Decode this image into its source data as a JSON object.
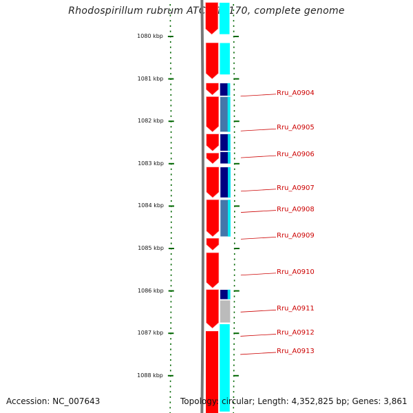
{
  "title": "Rhodospirillum rubrum ATCC 11170, complete genome",
  "accession_text": "Accession: NC_007643",
  "topology_text": "Topology: circular; Length: 4,352,825 bp; Genes: 3,861",
  "colors": {
    "cds_forward": "#ff0000",
    "strand_cyan": "#00ffff",
    "gene_navy": "#000080",
    "gene_steel": "#4477aa",
    "gene_grey": "#bbbbbb",
    "tick_green": "#006600",
    "backbone": "#777777",
    "label_red": "#cc0000"
  },
  "scale_kbp": [
    1080,
    1081,
    1082,
    1083,
    1084,
    1085,
    1086,
    1087,
    1088
  ],
  "scale_labels": [
    "1080 kbp",
    "1081 kbp",
    "1082 kbp",
    "1083 kbp",
    "1084 kbp",
    "1085 kbp",
    "1086 kbp",
    "1087 kbp",
    "1088 kbp"
  ],
  "view_range_kbp": [
    1079.22,
    1088.85
  ],
  "forward_cds": [
    [
      1079.2,
      1079.95
    ],
    [
      1080.15,
      1081.0
    ],
    [
      1081.1,
      1081.38
    ],
    [
      1081.42,
      1082.25
    ],
    [
      1082.3,
      1082.7
    ],
    [
      1082.75,
      1083.0
    ],
    [
      1083.08,
      1083.8
    ],
    [
      1083.85,
      1084.72
    ],
    [
      1084.76,
      1085.04
    ],
    [
      1085.1,
      1085.93
    ],
    [
      1085.97,
      1086.88
    ]
  ],
  "second_track": [
    {
      "start": 1079.2,
      "end": 1079.95,
      "kind": "cyan"
    },
    {
      "start": 1080.15,
      "end": 1080.9,
      "kind": "cyan"
    },
    {
      "start": 1081.1,
      "end": 1081.4,
      "kind": "navy"
    },
    {
      "start": 1081.42,
      "end": 1082.25,
      "kind": "steel"
    },
    {
      "start": 1082.3,
      "end": 1082.7,
      "kind": "navy"
    },
    {
      "start": 1082.72,
      "end": 1083.0,
      "kind": "navy"
    },
    {
      "start": 1083.08,
      "end": 1083.8,
      "kind": "navy"
    },
    {
      "start": 1083.85,
      "end": 1084.72,
      "kind": "steel"
    },
    {
      "start": 1085.97,
      "end": 1086.2,
      "kind": "navy"
    },
    {
      "start": 1086.22,
      "end": 1086.75,
      "kind": "grey"
    },
    {
      "start": 1086.78,
      "end": 1088.85,
      "kind": "cyan"
    }
  ],
  "gene_labels": [
    {
      "name": "Rru_A0904",
      "kbp": 1081.36
    },
    {
      "name": "Rru_A0905",
      "kbp": 1082.18
    },
    {
      "name": "Rru_A0906",
      "kbp": 1082.81
    },
    {
      "name": "Rru_A0907",
      "kbp": 1083.6
    },
    {
      "name": "Rru_A0908",
      "kbp": 1084.1
    },
    {
      "name": "Rru_A0909",
      "kbp": 1084.73
    },
    {
      "name": "Rru_A0910",
      "kbp": 1085.58
    },
    {
      "name": "Rru_A0911",
      "kbp": 1086.45
    },
    {
      "name": "Rru_A0912",
      "kbp": 1087.02
    },
    {
      "name": "Rru_A0913",
      "kbp": 1087.45
    }
  ]
}
